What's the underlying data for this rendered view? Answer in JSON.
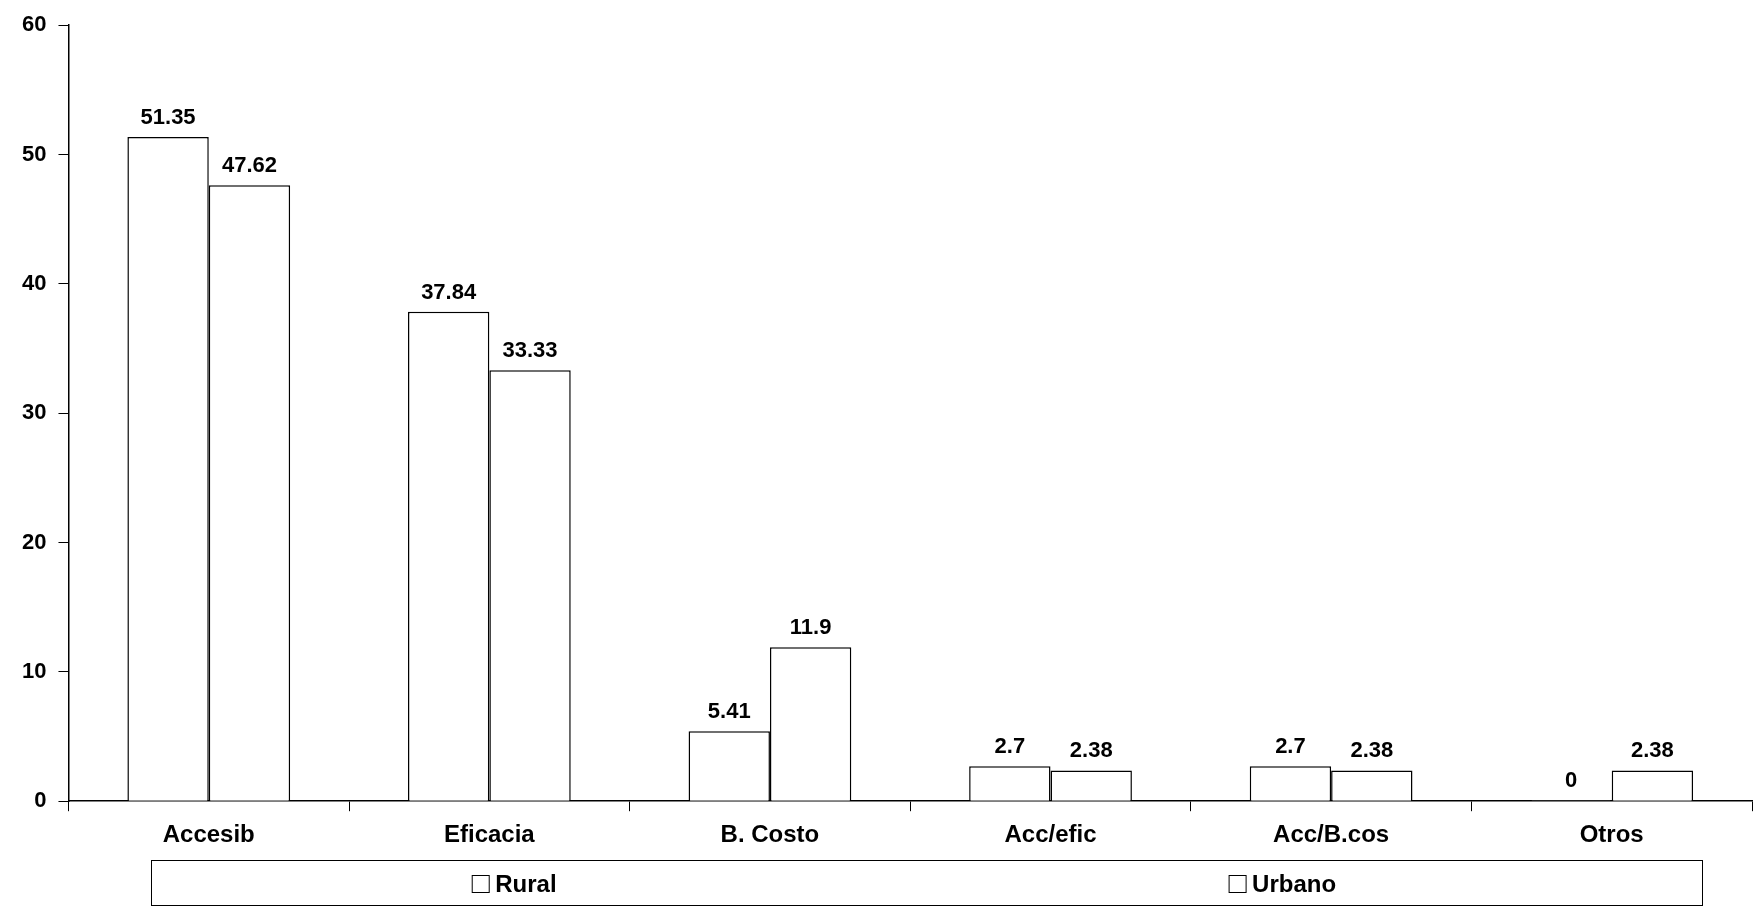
{
  "chart_data": {
    "type": "bar",
    "categories": [
      "Accesib",
      "Eficacia",
      "B. Costo",
      "Acc/efic",
      "Acc/B.cos",
      "Otros"
    ],
    "series": [
      {
        "name": "Rural",
        "color": "#ffffff",
        "values": [
          51.35,
          37.84,
          5.41,
          2.7,
          2.7,
          0
        ]
      },
      {
        "name": "Urbano",
        "color": "#ffffff",
        "values": [
          47.62,
          33.33,
          11.9,
          2.38,
          2.38,
          2.38
        ]
      }
    ],
    "ylim": [
      0,
      60
    ],
    "yticks": [
      0,
      10,
      20,
      30,
      40,
      50,
      60
    ],
    "grid": false,
    "legend": "bottom",
    "data_labels": true
  }
}
